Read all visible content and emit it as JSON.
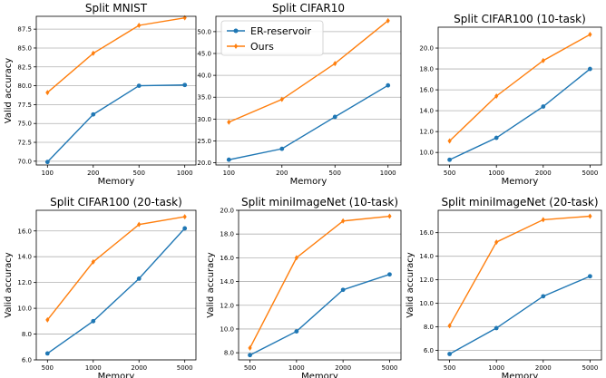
{
  "colors": {
    "er": "#1f77b4",
    "ours": "#ff7f0e",
    "grid": "#b0b0b0",
    "frame": "#000000"
  },
  "legend": {
    "placement": "top-left of second subplot",
    "items": [
      {
        "label": "ER-reservoir",
        "color": "#1f77b4",
        "marker": "circle"
      },
      {
        "label": "Ours",
        "color": "#ff7f0e",
        "marker": "diamond"
      }
    ]
  },
  "chart_data": [
    {
      "type": "line",
      "title": "Split MNIST",
      "xlabel": "Memory",
      "ylabel": "Valid accuracy",
      "categories": [
        "100",
        "200",
        "500",
        "1000"
      ],
      "ylim": [
        69.5,
        89.2
      ],
      "yticks": [
        70.0,
        72.5,
        75.0,
        77.5,
        80.0,
        82.5,
        85.0,
        87.5
      ],
      "ytick_labels": [
        "70.0",
        "72.5",
        "75.0",
        "77.5",
        "80.0",
        "82.5",
        "85.0",
        "87.5"
      ],
      "grid": "horizontal",
      "series": [
        {
          "name": "ER-reservoir",
          "values": [
            69.9,
            76.2,
            80.0,
            80.1
          ]
        },
        {
          "name": "Ours",
          "values": [
            79.1,
            84.3,
            88.0,
            89.0
          ]
        }
      ]
    },
    {
      "type": "line",
      "title": "Split CIFAR10",
      "xlabel": "Memory",
      "ylabel": "",
      "categories": [
        "100",
        "200",
        "500",
        "1000"
      ],
      "ylim": [
        19.5,
        53.5
      ],
      "yticks": [
        20.0,
        25.0,
        30.0,
        35.0,
        40.0,
        45.0,
        50.0
      ],
      "ytick_labels": [
        "20.0",
        "25.0",
        "30.0",
        "35.0",
        "40.0",
        "45.0",
        "50.0"
      ],
      "grid": "horizontal",
      "series": [
        {
          "name": "ER-reservoir",
          "values": [
            20.7,
            23.2,
            30.5,
            37.7
          ]
        },
        {
          "name": "Ours",
          "values": [
            29.3,
            34.5,
            42.7,
            52.5
          ]
        }
      ]
    },
    {
      "type": "line",
      "title": "Split CIFAR100 (10-task)",
      "xlabel": "Memory",
      "ylabel": "",
      "categories": [
        "500",
        "1000",
        "2000",
        "5000"
      ],
      "ylim": [
        8.8,
        22.0
      ],
      "yticks": [
        10.0,
        12.0,
        14.0,
        16.0,
        18.0,
        20.0
      ],
      "ytick_labels": [
        "10.0",
        "12.0",
        "14.0",
        "16.0",
        "18.0",
        "20.0"
      ],
      "grid": "horizontal",
      "series": [
        {
          "name": "ER-reservoir",
          "values": [
            9.3,
            11.4,
            14.4,
            18.0
          ]
        },
        {
          "name": "Ours",
          "values": [
            11.1,
            15.4,
            18.8,
            21.3
          ]
        }
      ]
    },
    {
      "type": "line",
      "title": "Split CIFAR100 (20-task)",
      "xlabel": "Memory",
      "ylabel": "Valid accuracy",
      "categories": [
        "500",
        "1000",
        "2000",
        "5000"
      ],
      "ylim": [
        6.0,
        17.6
      ],
      "yticks": [
        6.0,
        8.0,
        10.0,
        12.0,
        14.0,
        16.0
      ],
      "ytick_labels": [
        "6.0",
        "8.0",
        "10.0",
        "12.0",
        "14.0",
        "16.0"
      ],
      "grid": "horizontal",
      "series": [
        {
          "name": "ER-reservoir",
          "values": [
            6.5,
            9.0,
            12.3,
            16.2
          ]
        },
        {
          "name": "Ours",
          "values": [
            9.1,
            13.6,
            16.5,
            17.1
          ]
        }
      ]
    },
    {
      "type": "line",
      "title": "Split miniImageNet (10-task)",
      "xlabel": "Memory",
      "ylabel": "Valid accuracy",
      "categories": [
        "500",
        "1000",
        "2000",
        "5000"
      ],
      "ylim": [
        7.4,
        20.0
      ],
      "yticks": [
        8.0,
        10.0,
        12.0,
        14.0,
        16.0,
        18.0,
        20.0
      ],
      "ytick_labels": [
        "8.0",
        "10.0",
        "12.0",
        "14.0",
        "16.0",
        "18.0",
        "20.0"
      ],
      "grid": "horizontal",
      "series": [
        {
          "name": "ER-reservoir",
          "values": [
            7.8,
            9.8,
            13.3,
            14.6
          ]
        },
        {
          "name": "Ours",
          "values": [
            8.4,
            16.0,
            19.1,
            19.5
          ]
        }
      ]
    },
    {
      "type": "line",
      "title": "Split miniImageNet (20-task)",
      "xlabel": "Memory",
      "ylabel": "Valid accuracy",
      "categories": [
        "500",
        "1000",
        "2000",
        "5000"
      ],
      "ylim": [
        5.2,
        17.9
      ],
      "yticks": [
        6.0,
        8.0,
        10.0,
        12.0,
        14.0,
        16.0
      ],
      "ytick_labels": [
        "6.0",
        "8.0",
        "10.0",
        "12.0",
        "14.0",
        "16.0"
      ],
      "grid": "horizontal",
      "series": [
        {
          "name": "ER-reservoir",
          "values": [
            5.7,
            7.9,
            10.6,
            12.3
          ]
        },
        {
          "name": "Ours",
          "values": [
            8.1,
            15.2,
            17.1,
            17.4
          ]
        }
      ]
    }
  ]
}
